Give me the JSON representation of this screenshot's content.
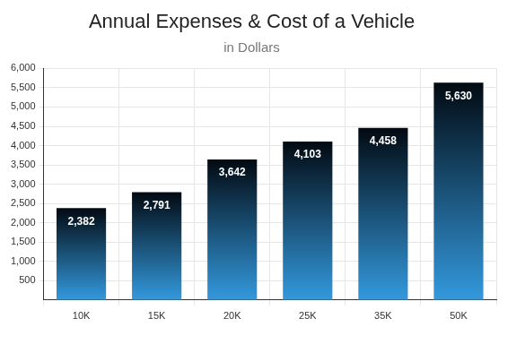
{
  "chart_data": {
    "type": "bar",
    "title": "Annual Expenses & Cost of a Vehicle",
    "subtitle": "in Dollars",
    "categories": [
      "10K",
      "15K",
      "20K",
      "25K",
      "35K",
      "50K"
    ],
    "values": [
      2382,
      2791,
      3642,
      4103,
      4458,
      5630
    ],
    "value_labels": [
      "2,382",
      "2,791",
      "3,642",
      "4,103",
      "4,458",
      "5,630"
    ],
    "data_labels": true,
    "color": "#3399dd",
    "ylim": [
      0,
      6000
    ],
    "yticks": [
      500,
      {
        "value": 1000,
        "label": "1,000"
      },
      {
        "value": 1500,
        "label": "1,500"
      },
      {
        "value": 2000,
        "label": "2,000"
      },
      {
        "value": 2500,
        "label": "2,500"
      },
      {
        "value": 3000,
        "label": "3,000"
      },
      {
        "value": 3500,
        "label": "3,500"
      },
      {
        "value": 4000,
        "label": "4,000"
      },
      {
        "value": 4500,
        "label": "4,500"
      },
      {
        "value": 5000,
        "label": "5,000"
      },
      {
        "value": 5500,
        "label": "5,500"
      },
      {
        "value": 6000,
        "label": "6,000"
      }
    ],
    "grid": true
  }
}
